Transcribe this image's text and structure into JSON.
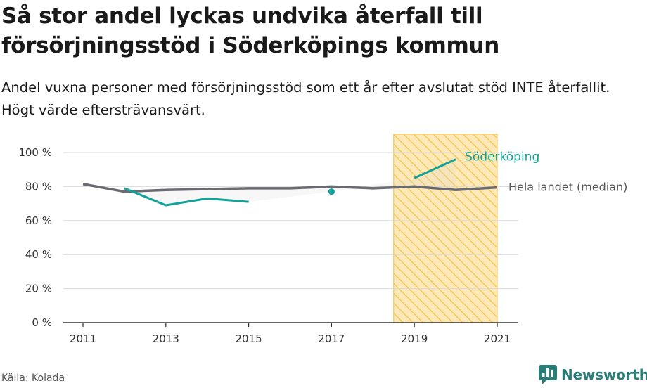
{
  "header": {
    "title": "Så stor andel lyckas undvika återfall till försörjningsstöd i Söderköpings kommun",
    "subtitle": "Andel vuxna personer med försörjningsstöd som ett år efter avslutat stöd INTE återfallit. Högt värde eftersträvansvärt."
  },
  "footer": {
    "source": "Källa: Kolada",
    "brand": "Newsworthy"
  },
  "colors": {
    "local": "#0fa39a",
    "national": "#6a6a73",
    "highlight_fill": "#fde9b8",
    "highlight_stroke": "#f5c85c",
    "grid": "#d9d9d9",
    "brand": "#2a7e78"
  },
  "chart_data": {
    "type": "line",
    "x": [
      2011,
      2012,
      2013,
      2014,
      2015,
      2016,
      2017,
      2018,
      2019,
      2020,
      2021
    ],
    "xlim": [
      2011,
      2021
    ],
    "ylim": [
      0,
      100
    ],
    "y_ticks": [
      0,
      20,
      40,
      60,
      80,
      100
    ],
    "y_tick_labels": [
      "0 %",
      "20 %",
      "40 %",
      "60 %",
      "80 %",
      "100 %"
    ],
    "x_ticks": [
      2011,
      2013,
      2015,
      2017,
      2019,
      2021
    ],
    "x_tick_labels": [
      "2011",
      "2013",
      "2015",
      "2017",
      "2019",
      "2021"
    ],
    "grid": true,
    "highlight_range": [
      2018.5,
      2021
    ],
    "series": [
      {
        "name": "Söderköping",
        "values": [
          null,
          79,
          69,
          73,
          71,
          null,
          77,
          null,
          85,
          96,
          null
        ]
      },
      {
        "name": "Hela landet (median)",
        "values": [
          81.5,
          77,
          78,
          78.5,
          79,
          79,
          80,
          79,
          80,
          78,
          79.5
        ]
      }
    ]
  }
}
